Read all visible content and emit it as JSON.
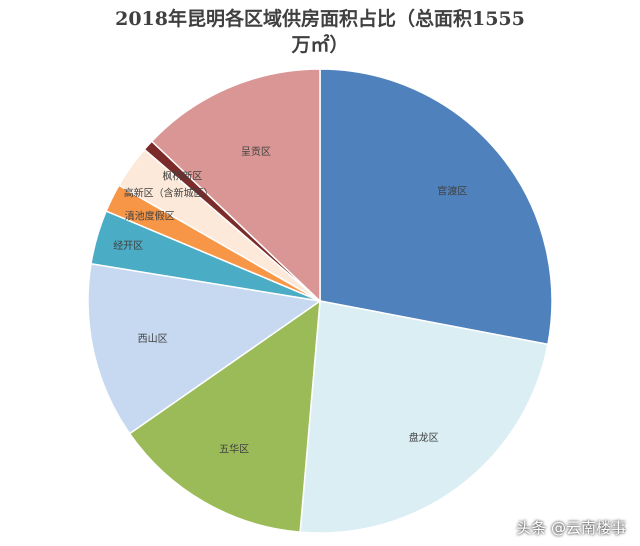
{
  "chart_data": {
    "type": "pie",
    "title_line1": "2018年昆明各区域供房面积占比（总面积1555",
    "title_line2": "万㎡）",
    "start_angle_deg": 0,
    "slices": [
      {
        "label": "官渡区",
        "value": 29.7,
        "color": "#4f81bd"
      },
      {
        "label": "盘龙区",
        "value": 24.8,
        "color": "#daeef3"
      },
      {
        "label": "五华区",
        "value": 14.8,
        "color": "#9bbb59"
      },
      {
        "label": "西山区",
        "value": 13.0,
        "color": "#c6d9f1"
      },
      {
        "label": "经开区",
        "value": 4.0,
        "color": "#4bacc6"
      },
      {
        "label": "滇池度假区",
        "value": 2.1,
        "color": "#f79646"
      },
      {
        "label": "高新区（含新城区）",
        "value": 3.2,
        "color": "#fde9d9"
      },
      {
        "label": "枫桥新区",
        "value": 0.8,
        "color": "#7b2c2a"
      },
      {
        "label": "呈贡区",
        "value": 13.7,
        "color": "#d99694"
      }
    ]
  },
  "watermark": "头条 @云南楼事"
}
